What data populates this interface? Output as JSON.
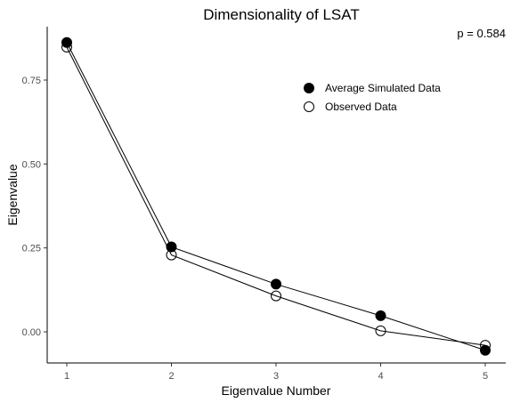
{
  "chart_data": {
    "type": "line",
    "title": "Dimensionality of LSAT",
    "xlabel": "Eigenvalue Number",
    "ylabel": "Eigenvalue",
    "x": [
      1,
      2,
      3,
      4,
      5
    ],
    "xlim": [
      0.8,
      5.2
    ],
    "ylim": [
      -0.1,
      0.91
    ],
    "x_ticks": [
      "1",
      "2",
      "3",
      "4",
      "5"
    ],
    "y_ticks": [
      {
        "value": 0.0,
        "label": "0.00"
      },
      {
        "value": 0.25,
        "label": "0.25"
      },
      {
        "value": 0.5,
        "label": "0.50"
      },
      {
        "value": 0.75,
        "label": "0.75"
      }
    ],
    "grid": false,
    "legend_position": "top-right",
    "annotation": "p = 0.584",
    "series": [
      {
        "name": "Average Simulated Data",
        "marker": "filled-circle",
        "color": "#000000",
        "values": [
          0.862,
          0.253,
          0.142,
          0.048,
          -0.055
        ]
      },
      {
        "name": "Observed Data",
        "marker": "open-circle",
        "color": "#000000",
        "values": [
          0.848,
          0.229,
          0.107,
          0.003,
          -0.04
        ]
      }
    ]
  }
}
